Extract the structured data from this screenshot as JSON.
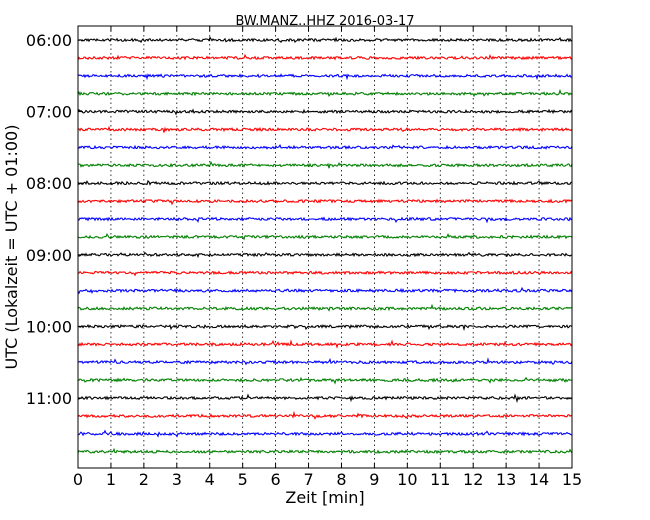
{
  "chart_data": {
    "type": "line",
    "title": "BW.MANZ..HHZ 2016-03-17",
    "xlabel": "Zeit  [min]",
    "ylabel": "UTC (Lokalzeit = UTC + 01:00)",
    "xlim": [
      0,
      15
    ],
    "x_ticks": [
      "0",
      "1",
      "2",
      "3",
      "4",
      "5",
      "6",
      "7",
      "8",
      "9",
      "10",
      "11",
      "12",
      "13",
      "14",
      "15"
    ],
    "y_ticks": [
      "06:00",
      "07:00",
      "08:00",
      "09:00",
      "10:00",
      "11:00"
    ],
    "trace_interval_min": 15,
    "grid_x": "dotted",
    "grid_y": false,
    "colors": [
      "#000000",
      "#ff0000",
      "#0000ff",
      "#008000"
    ],
    "traces": [
      {
        "start": "06:00",
        "color": "#000000"
      },
      {
        "start": "06:15",
        "color": "#ff0000"
      },
      {
        "start": "06:30",
        "color": "#0000ff"
      },
      {
        "start": "06:45",
        "color": "#008000"
      },
      {
        "start": "07:00",
        "color": "#000000"
      },
      {
        "start": "07:15",
        "color": "#ff0000"
      },
      {
        "start": "07:30",
        "color": "#0000ff"
      },
      {
        "start": "07:45",
        "color": "#008000"
      },
      {
        "start": "08:00",
        "color": "#000000"
      },
      {
        "start": "08:15",
        "color": "#ff0000"
      },
      {
        "start": "08:30",
        "color": "#0000ff"
      },
      {
        "start": "08:45",
        "color": "#008000"
      },
      {
        "start": "09:00",
        "color": "#000000"
      },
      {
        "start": "09:15",
        "color": "#ff0000"
      },
      {
        "start": "09:30",
        "color": "#0000ff"
      },
      {
        "start": "09:45",
        "color": "#008000"
      },
      {
        "start": "10:00",
        "color": "#000000"
      },
      {
        "start": "10:15",
        "color": "#ff0000"
      },
      {
        "start": "10:30",
        "color": "#0000ff"
      },
      {
        "start": "10:45",
        "color": "#008000"
      },
      {
        "start": "11:00",
        "color": "#000000"
      },
      {
        "start": "11:15",
        "color": "#ff0000"
      },
      {
        "start": "11:30",
        "color": "#0000ff"
      },
      {
        "start": "11:45",
        "color": "#008000"
      }
    ]
  }
}
